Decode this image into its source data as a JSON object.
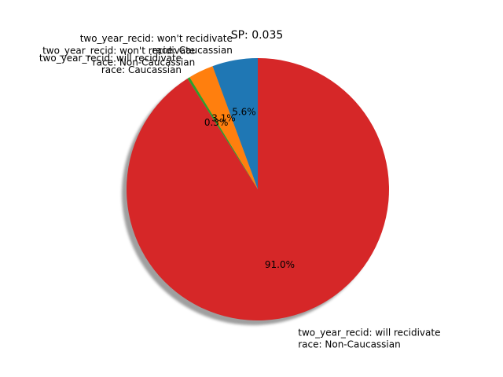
{
  "chart_data": {
    "type": "pie",
    "title": "SP: 0.035",
    "start_angle_deg": 90,
    "direction": "counterclockwise",
    "shadow": true,
    "slices": [
      {
        "line1": "two_year_recid: won't recidivate",
        "line2": "race: Caucassian",
        "value": 5.6,
        "pct_label": "5.6%",
        "color": "#1f77b4"
      },
      {
        "line1": "two_year_recid: won't recidivate",
        "line2": "race: Non-Caucassian",
        "value": 3.1,
        "pct_label": "3.1%",
        "color": "#ff7f0e"
      },
      {
        "line1": "two_year_recid: will recidivate",
        "line2": "race: Caucassian",
        "value": 0.3,
        "pct_label": "0.3%",
        "color": "#2ca02c"
      },
      {
        "line1": "two_year_recid: will recidivate",
        "line2": "race: Non-Caucassian",
        "value": 91.0,
        "pct_label": "91.0%",
        "color": "#d62728"
      }
    ]
  }
}
